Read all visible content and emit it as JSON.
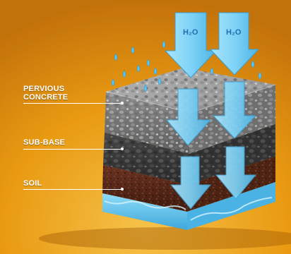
{
  "labels": {
    "pervious_line1": "PERVIOUS",
    "pervious_line2": "CONCRETE",
    "sub_base": "SUB-BASE",
    "soil": "SOIL"
  },
  "arrow_text": {
    "left": "H₂O",
    "right": "H₂O"
  },
  "colors": {
    "background": "#e89a10",
    "concrete": "#7c7c7c",
    "sub_base": "#3b3b3b",
    "soil": "#5a2a18",
    "water": "#5cc4ee",
    "arrow": "#7fd3f7"
  }
}
